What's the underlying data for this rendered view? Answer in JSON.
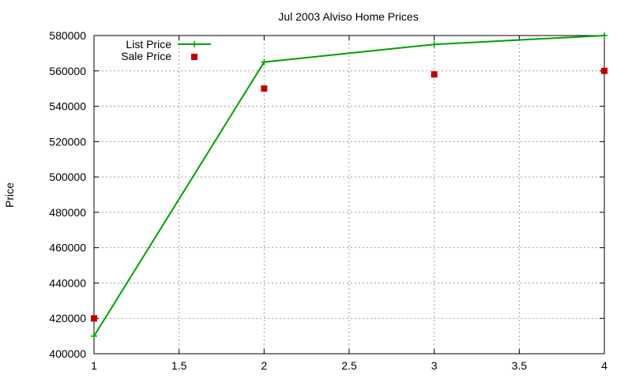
{
  "chart_data": {
    "type": "line",
    "title": "Jul 2003 Alviso Home Prices",
    "xlabel": "",
    "ylabel": "Price",
    "xlim": [
      1,
      4
    ],
    "ylim": [
      400000,
      580000
    ],
    "x_ticks": [
      "1",
      "1.5",
      "2",
      "2.5",
      "3",
      "3.5",
      "4"
    ],
    "y_ticks": [
      "400000",
      "420000",
      "440000",
      "460000",
      "480000",
      "500000",
      "520000",
      "540000",
      "560000",
      "580000"
    ],
    "grid": true,
    "legend_position": "top-left",
    "series": [
      {
        "name": "List Price",
        "style": "lines+points",
        "color": "#00a000",
        "x": [
          1,
          2,
          3,
          4
        ],
        "y": [
          410000,
          565000,
          575000,
          580000
        ]
      },
      {
        "name": "Sale Price",
        "style": "points",
        "color": "#c00000",
        "x": [
          1,
          2,
          3,
          4
        ],
        "y": [
          420000,
          550000,
          558000,
          560000
        ]
      }
    ]
  }
}
